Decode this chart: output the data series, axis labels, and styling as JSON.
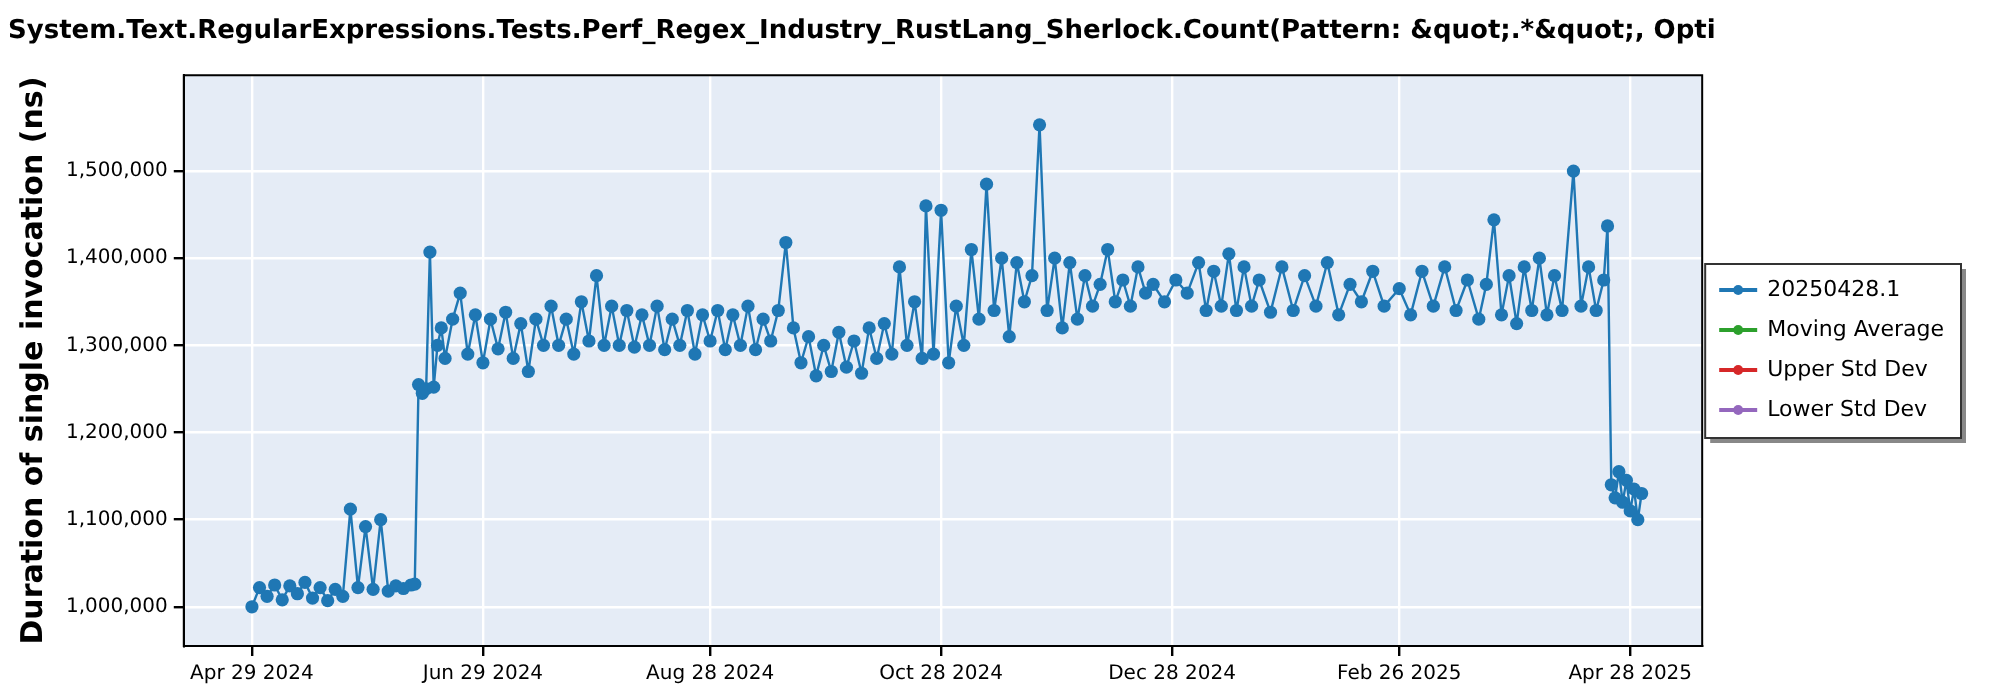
{
  "chart_data": {
    "type": "line",
    "title": "System.Text.RegularExpressions.Tests.Perf_Regex_Industry_RustLang_Sherlock.Count(Pattern: &quot;.*&quot;, Opti",
    "ylabel": "Duration of single invocation (ns)",
    "x": [
      "2024-04-29",
      "2024-05-01",
      "2024-05-03",
      "2024-05-05",
      "2024-05-07",
      "2024-05-09",
      "2024-05-11",
      "2024-05-13",
      "2024-05-15",
      "2024-05-17",
      "2024-05-19",
      "2024-05-21",
      "2024-05-23",
      "2024-05-25",
      "2024-05-27",
      "2024-05-29",
      "2024-05-31",
      "2024-06-02",
      "2024-06-04",
      "2024-06-06",
      "2024-06-08",
      "2024-06-10",
      "2024-06-11",
      "2024-06-12",
      "2024-06-13",
      "2024-06-14",
      "2024-06-15",
      "2024-06-16",
      "2024-06-17",
      "2024-06-18",
      "2024-06-19",
      "2024-06-21",
      "2024-06-23",
      "2024-06-25",
      "2024-06-27",
      "2024-06-29",
      "2024-07-01",
      "2024-07-03",
      "2024-07-05",
      "2024-07-07",
      "2024-07-09",
      "2024-07-11",
      "2024-07-13",
      "2024-07-15",
      "2024-07-17",
      "2024-07-19",
      "2024-07-21",
      "2024-07-23",
      "2024-07-25",
      "2024-07-27",
      "2024-07-29",
      "2024-07-31",
      "2024-08-02",
      "2024-08-04",
      "2024-08-06",
      "2024-08-08",
      "2024-08-10",
      "2024-08-12",
      "2024-08-14",
      "2024-08-16",
      "2024-08-18",
      "2024-08-20",
      "2024-08-22",
      "2024-08-24",
      "2024-08-26",
      "2024-08-28",
      "2024-08-30",
      "2024-09-01",
      "2024-09-03",
      "2024-09-05",
      "2024-09-07",
      "2024-09-09",
      "2024-09-11",
      "2024-09-13",
      "2024-09-15",
      "2024-09-17",
      "2024-09-19",
      "2024-09-21",
      "2024-09-23",
      "2024-09-25",
      "2024-09-27",
      "2024-09-29",
      "2024-10-01",
      "2024-10-03",
      "2024-10-05",
      "2024-10-07",
      "2024-10-09",
      "2024-10-11",
      "2024-10-13",
      "2024-10-15",
      "2024-10-17",
      "2024-10-19",
      "2024-10-21",
      "2024-10-23",
      "2024-10-24",
      "2024-10-26",
      "2024-10-28",
      "2024-10-30",
      "2024-11-01",
      "2024-11-03",
      "2024-11-05",
      "2024-11-07",
      "2024-11-09",
      "2024-11-11",
      "2024-11-13",
      "2024-11-15",
      "2024-11-17",
      "2024-11-19",
      "2024-11-21",
      "2024-11-23",
      "2024-11-25",
      "2024-11-27",
      "2024-11-29",
      "2024-12-01",
      "2024-12-03",
      "2024-12-05",
      "2024-12-07",
      "2024-12-09",
      "2024-12-11",
      "2024-12-13",
      "2024-12-15",
      "2024-12-17",
      "2024-12-19",
      "2024-12-21",
      "2024-12-23",
      "2024-12-26",
      "2024-12-29",
      "2025-01-01",
      "2025-01-04",
      "2025-01-06",
      "2025-01-08",
      "2025-01-10",
      "2025-01-12",
      "2025-01-14",
      "2025-01-16",
      "2025-01-18",
      "2025-01-20",
      "2025-01-23",
      "2025-01-26",
      "2025-01-29",
      "2025-02-01",
      "2025-02-04",
      "2025-02-07",
      "2025-02-10",
      "2025-02-13",
      "2025-02-16",
      "2025-02-19",
      "2025-02-22",
      "2025-02-26",
      "2025-03-01",
      "2025-03-04",
      "2025-03-07",
      "2025-03-10",
      "2025-03-13",
      "2025-03-16",
      "2025-03-19",
      "2025-03-21",
      "2025-03-23",
      "2025-03-25",
      "2025-03-27",
      "2025-03-29",
      "2025-03-31",
      "2025-04-02",
      "2025-04-04",
      "2025-04-06",
      "2025-04-08",
      "2025-04-10",
      "2025-04-13",
      "2025-04-15",
      "2025-04-17",
      "2025-04-19",
      "2025-04-21",
      "2025-04-22",
      "2025-04-23",
      "2025-04-24",
      "2025-04-25",
      "2025-04-26",
      "2025-04-27",
      "2025-04-28",
      "2025-04-29",
      "2025-04-30",
      "2025-05-01"
    ],
    "series": [
      {
        "name": "20250428.1",
        "color": "#1f77b4",
        "values": [
          1000000,
          1022000,
          1012000,
          1025000,
          1008000,
          1024000,
          1015000,
          1028000,
          1010000,
          1022000,
          1007000,
          1020000,
          1012000,
          1112000,
          1022000,
          1092000,
          1020000,
          1100000,
          1018000,
          1024000,
          1021000,
          1025000,
          1026000,
          1255000,
          1245000,
          1250000,
          1407000,
          1252000,
          1300000,
          1320000,
          1285000,
          1330000,
          1360000,
          1290000,
          1335000,
          1280000,
          1330000,
          1296000,
          1338000,
          1285000,
          1325000,
          1270000,
          1330000,
          1300000,
          1345000,
          1300000,
          1330000,
          1290000,
          1350000,
          1305000,
          1380000,
          1300000,
          1345000,
          1300000,
          1340000,
          1298000,
          1335000,
          1300000,
          1345000,
          1295000,
          1330000,
          1300000,
          1340000,
          1290000,
          1335000,
          1305000,
          1340000,
          1295000,
          1335000,
          1300000,
          1345000,
          1295000,
          1330000,
          1305000,
          1340000,
          1418000,
          1320000,
          1280000,
          1310000,
          1265000,
          1300000,
          1270000,
          1315000,
          1275000,
          1305000,
          1268000,
          1320000,
          1285000,
          1325000,
          1290000,
          1390000,
          1300000,
          1350000,
          1285000,
          1460000,
          1290000,
          1455000,
          1280000,
          1345000,
          1300000,
          1410000,
          1330000,
          1485000,
          1340000,
          1400000,
          1310000,
          1395000,
          1350000,
          1380000,
          1553000,
          1340000,
          1400000,
          1320000,
          1395000,
          1330000,
          1380000,
          1345000,
          1370000,
          1410000,
          1350000,
          1375000,
          1345000,
          1390000,
          1360000,
          1370000,
          1350000,
          1375000,
          1360000,
          1395000,
          1340000,
          1385000,
          1345000,
          1405000,
          1340000,
          1390000,
          1345000,
          1375000,
          1338000,
          1390000,
          1340000,
          1380000,
          1345000,
          1395000,
          1335000,
          1370000,
          1350000,
          1385000,
          1345000,
          1365000,
          1335000,
          1385000,
          1345000,
          1390000,
          1340000,
          1375000,
          1330000,
          1370000,
          1444000,
          1335000,
          1380000,
          1325000,
          1390000,
          1340000,
          1400000,
          1335000,
          1380000,
          1340000,
          1500000,
          1345000,
          1390000,
          1340000,
          1375000,
          1437000,
          1140000,
          1125000,
          1155000,
          1120000,
          1145000,
          1110000,
          1135000,
          1100000,
          1130000
        ]
      },
      {
        "name": "Moving Average",
        "color": "#2ca02c",
        "values": [
          null,
          null,
          null,
          null,
          null,
          null,
          null,
          null,
          null,
          null,
          null,
          null,
          null,
          null,
          null,
          null,
          null,
          null,
          null,
          null,
          null,
          null,
          null,
          null,
          null,
          null,
          null,
          null,
          null,
          null,
          null,
          null,
          null,
          null,
          null,
          null,
          null,
          null,
          null,
          null,
          null,
          null,
          null,
          null,
          null,
          null,
          null,
          null,
          null,
          null,
          null,
          null,
          null,
          null,
          null,
          null,
          null,
          null,
          null,
          null,
          null,
          null,
          null,
          null,
          null,
          null,
          null,
          null,
          null,
          null,
          null,
          null,
          null,
          null,
          null,
          null,
          null,
          null,
          null,
          null,
          null,
          null,
          null,
          null,
          null,
          null,
          null,
          null,
          null,
          null,
          null,
          null,
          null,
          null,
          null,
          null,
          null,
          null,
          null,
          null,
          null,
          null,
          null,
          null,
          null,
          null,
          null,
          null,
          null,
          null,
          null,
          null,
          null,
          null,
          null,
          null,
          null,
          null,
          null,
          null,
          null,
          null,
          null,
          null,
          null,
          null,
          null,
          null,
          null,
          null,
          null,
          null,
          null,
          null,
          null,
          null,
          null,
          null,
          null,
          null,
          null,
          null,
          null,
          null,
          null,
          null,
          null,
          null,
          null,
          null,
          null,
          null,
          null,
          null,
          null,
          null,
          null,
          null,
          null,
          null,
          null,
          null,
          null,
          null,
          null,
          null,
          null,
          null,
          null,
          null,
          null,
          null,
          null,
          null,
          null,
          null,
          null,
          null,
          null,
          null,
          null,
          null
        ]
      },
      {
        "name": "Upper Std Dev",
        "color": "#d62728",
        "values": [
          null,
          null,
          null,
          null,
          null,
          null,
          null,
          null,
          null,
          null,
          null,
          null,
          null,
          null,
          null,
          null,
          null,
          null,
          null,
          null,
          null,
          null,
          null,
          null,
          null,
          null,
          null,
          null,
          null,
          null,
          null,
          null,
          null,
          null,
          null,
          null,
          null,
          null,
          null,
          null,
          null,
          null,
          null,
          null,
          null,
          null,
          null,
          null,
          null,
          null,
          null,
          null,
          null,
          null,
          null,
          null,
          null,
          null,
          null,
          null,
          null,
          null,
          null,
          null,
          null,
          null,
          null,
          null,
          null,
          null,
          null,
          null,
          null,
          null,
          null,
          null,
          null,
          null,
          null,
          null,
          null,
          null,
          null,
          null,
          null,
          null,
          null,
          null,
          null,
          null,
          null,
          null,
          null,
          null,
          null,
          null,
          null,
          null,
          null,
          null,
          null,
          null,
          null,
          null,
          null,
          null,
          null,
          null,
          null,
          null,
          null,
          null,
          null,
          null,
          null,
          null,
          null,
          null,
          null,
          null,
          null,
          null,
          null,
          null,
          null,
          null,
          null,
          null,
          null,
          null,
          null,
          null,
          null,
          null,
          null,
          null,
          null,
          null,
          null,
          null,
          null,
          null,
          null,
          null,
          null,
          null,
          null,
          null,
          null,
          null,
          null,
          null,
          null,
          null,
          null,
          null,
          null,
          null,
          null,
          null,
          null,
          null,
          null,
          null,
          null,
          null,
          null,
          null,
          null,
          null,
          null,
          null,
          null,
          null,
          null,
          null,
          null,
          null,
          null,
          null,
          null,
          null
        ]
      },
      {
        "name": "Lower Std Dev",
        "color": "#9467bd",
        "values": [
          null,
          null,
          null,
          null,
          null,
          null,
          null,
          null,
          null,
          null,
          null,
          null,
          null,
          null,
          null,
          null,
          null,
          null,
          null,
          null,
          null,
          null,
          null,
          null,
          null,
          null,
          null,
          null,
          null,
          null,
          null,
          null,
          null,
          null,
          null,
          null,
          null,
          null,
          null,
          null,
          null,
          null,
          null,
          null,
          null,
          null,
          null,
          null,
          null,
          null,
          null,
          null,
          null,
          null,
          null,
          null,
          null,
          null,
          null,
          null,
          null,
          null,
          null,
          null,
          null,
          null,
          null,
          null,
          null,
          null,
          null,
          null,
          null,
          null,
          null,
          null,
          null,
          null,
          null,
          null,
          null,
          null,
          null,
          null,
          null,
          null,
          null,
          null,
          null,
          null,
          null,
          null,
          null,
          null,
          null,
          null,
          null,
          null,
          null,
          null,
          null,
          null,
          null,
          null,
          null,
          null,
          null,
          null,
          null,
          null,
          null,
          null,
          null,
          null,
          null,
          null,
          null,
          null,
          null,
          null,
          null,
          null,
          null,
          null,
          null,
          null,
          null,
          null,
          null,
          null,
          null,
          null,
          null,
          null,
          null,
          null,
          null,
          null,
          null,
          null,
          null,
          null,
          null,
          null,
          null,
          null,
          null,
          null,
          null,
          null,
          null,
          null,
          null,
          null,
          null,
          null,
          null,
          null,
          null,
          null,
          null,
          null,
          null,
          null,
          null,
          null,
          null,
          null,
          null,
          null,
          null,
          null,
          null,
          null,
          null,
          null,
          null,
          null,
          null,
          null,
          null,
          null
        ]
      }
    ],
    "xlim": [
      "2024-04-11",
      "2025-05-17"
    ],
    "xticks": [
      {
        "value": "2024-04-29",
        "label": "Apr 29 2024"
      },
      {
        "value": "2024-06-29",
        "label": "Jun 29 2024"
      },
      {
        "value": "2024-08-28",
        "label": "Aug 28 2024"
      },
      {
        "value": "2024-10-28",
        "label": "Oct 28 2024"
      },
      {
        "value": "2024-12-28",
        "label": "Dec 28 2024"
      },
      {
        "value": "2025-02-26",
        "label": "Feb 26 2025"
      },
      {
        "value": "2025-04-28",
        "label": "Apr 28 2025"
      }
    ],
    "ylim": [
      955000,
      1610000
    ],
    "yticks": [
      {
        "value": 1000000,
        "label": "1,000,000"
      },
      {
        "value": 1100000,
        "label": "1,100,000"
      },
      {
        "value": 1200000,
        "label": "1,200,000"
      },
      {
        "value": 1300000,
        "label": "1,300,000"
      },
      {
        "value": 1400000,
        "label": "1,400,000"
      },
      {
        "value": 1500000,
        "label": "1,500,000"
      }
    ],
    "grid": true,
    "legend": "right",
    "marker": "circle",
    "line_style": "solid"
  }
}
